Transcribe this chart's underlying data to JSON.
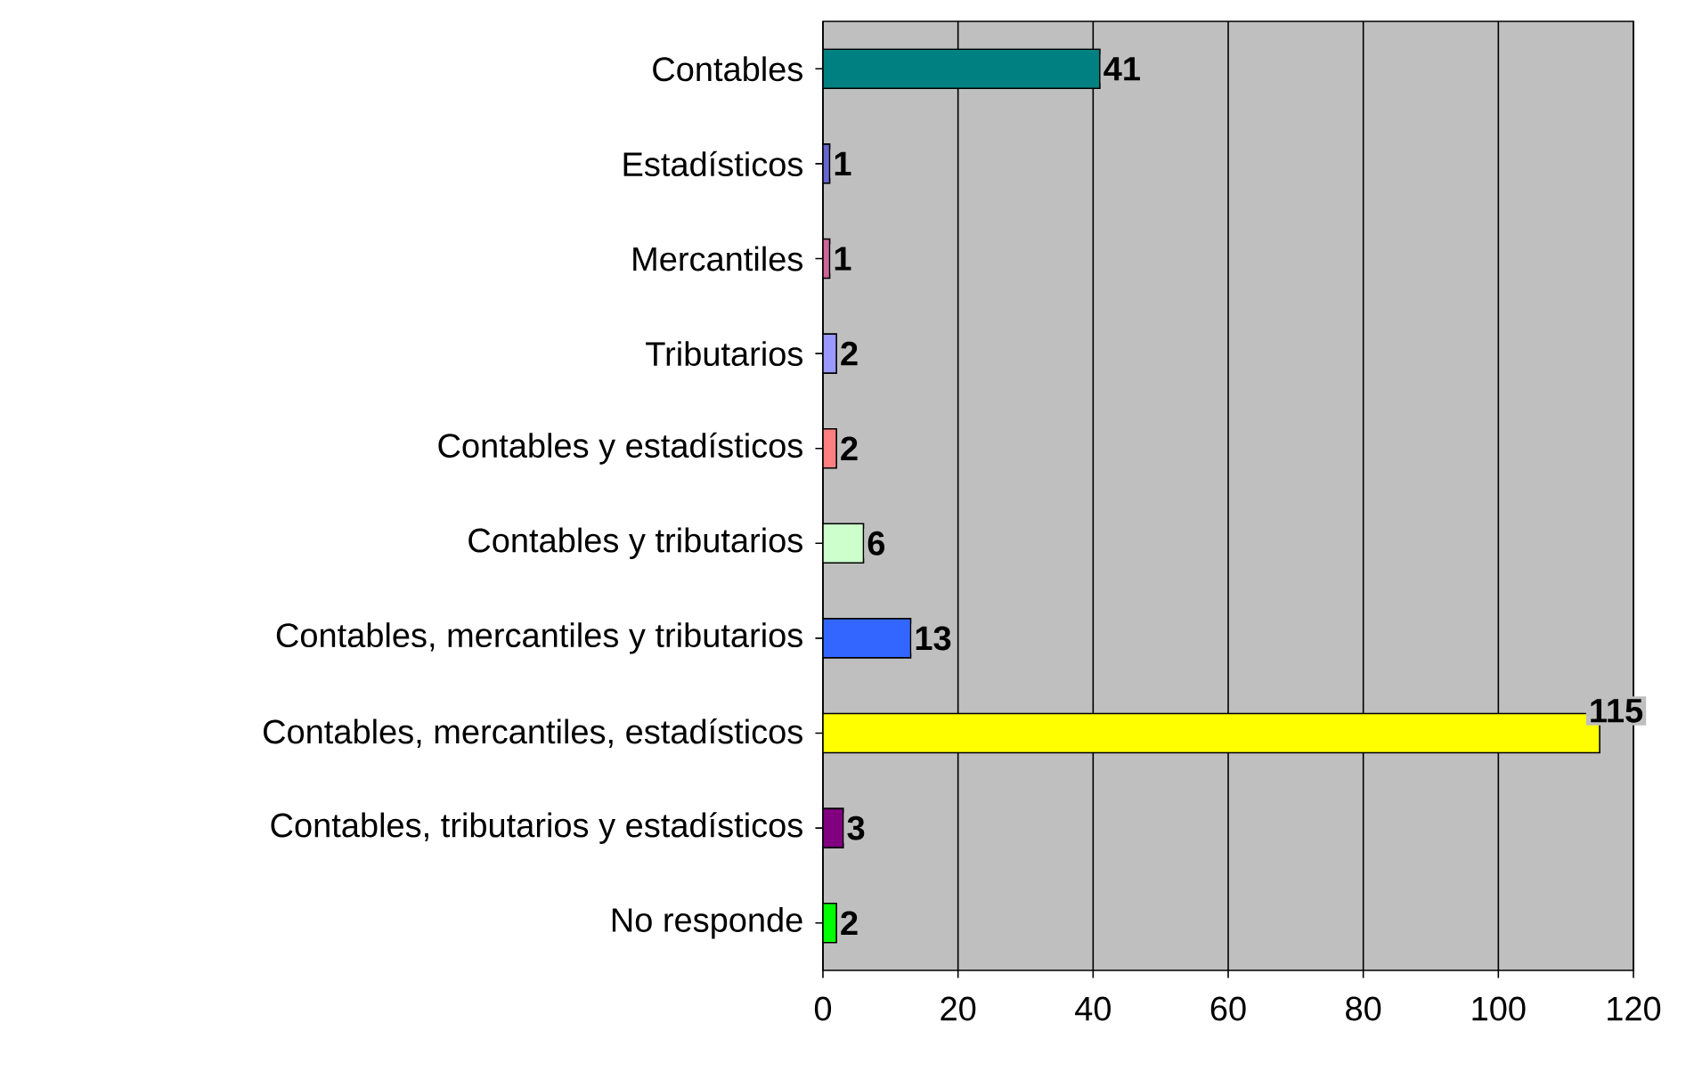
{
  "chart_data": {
    "type": "bar",
    "orientation": "horizontal",
    "categories": [
      "Contables",
      "Estadísticos",
      "Mercantiles",
      "Tributarios",
      "Contables y estadísticos",
      "Contables y tributarios",
      "Contables, mercantiles y tributarios",
      "Contables, mercantiles, estadísticos",
      "Contables, tributarios y estadísticos",
      "No responde"
    ],
    "values": [
      41,
      1,
      1,
      2,
      2,
      6,
      13,
      115,
      3,
      2
    ],
    "colors": [
      "#008080",
      "#6666cc",
      "#cc6699",
      "#9999ff",
      "#ff8080",
      "#ccffcc",
      "#3366ff",
      "#ffff00",
      "#800080",
      "#00ff00"
    ],
    "xlim": [
      0,
      120
    ],
    "xticks": [
      0,
      20,
      40,
      60,
      80,
      100,
      120
    ],
    "grid": "x",
    "data_labels": true
  }
}
